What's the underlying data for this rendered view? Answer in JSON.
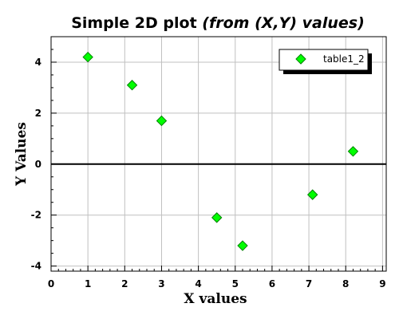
{
  "chart_data": {
    "type": "scatter",
    "title": "Simple 2D plot",
    "title_emphasis": "(from (X,Y) values)",
    "xlabel": "X values",
    "ylabel": "Y Values",
    "xlim": [
      0,
      9.1
    ],
    "ylim": [
      -4.2,
      5.0
    ],
    "x_ticks": [
      0,
      1,
      2,
      3,
      4,
      5,
      6,
      7,
      8,
      9
    ],
    "y_ticks": [
      -4,
      -2,
      0,
      2,
      4
    ],
    "x_tick_labels": [
      "0",
      "1",
      "2",
      "3",
      "4",
      "5",
      "6",
      "7",
      "8",
      "9"
    ],
    "y_tick_labels": [
      "-4",
      "-2",
      "0",
      "2",
      "4"
    ],
    "grid": true,
    "zero_line": true,
    "legend_position": "top-right",
    "series": [
      {
        "name": "table1_2",
        "marker": "diamond",
        "color": "#00ff00",
        "edge_color": "#008000",
        "x": [
          1.0,
          2.2,
          3.0,
          4.5,
          5.2,
          7.1,
          8.2
        ],
        "y": [
          4.2,
          3.1,
          1.7,
          -2.1,
          -3.2,
          -1.2,
          0.5
        ]
      }
    ]
  }
}
